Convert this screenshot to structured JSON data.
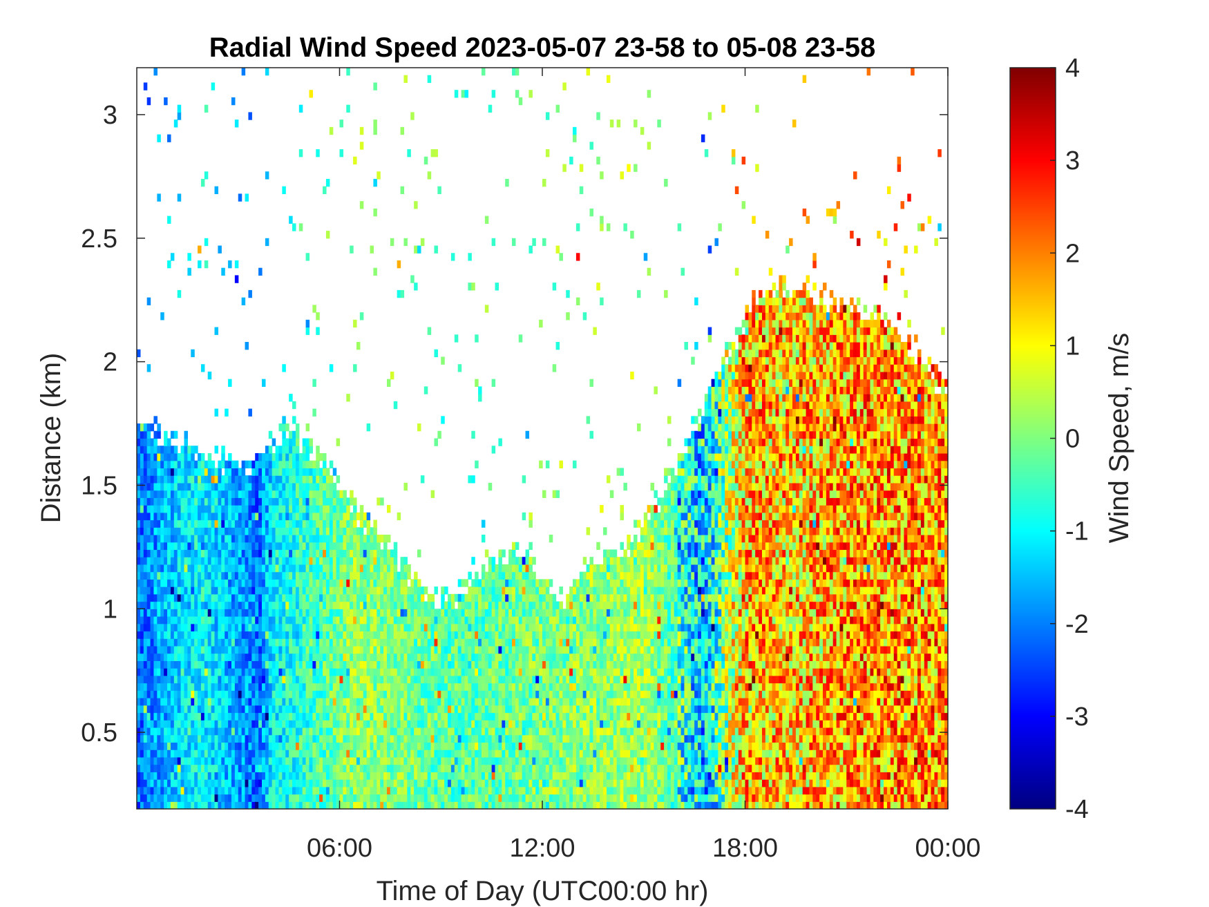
{
  "chart_data": {
    "type": "heatmap",
    "title": "Radial Wind Speed 2023-05-07 23-58 to 05-08 23-58",
    "xlabel": "Time of Day (UTC00:00 hr)",
    "ylabel": "Distance (km)",
    "xlim": [
      0,
      24
    ],
    "ylim": [
      0.19,
      3.19
    ],
    "x_ticks": [
      {
        "value": 6,
        "label": "06:00"
      },
      {
        "value": 12,
        "label": "12:00"
      },
      {
        "value": 18,
        "label": "18:00"
      },
      {
        "value": 24,
        "label": "00:00"
      }
    ],
    "y_ticks": [
      {
        "value": 0.5,
        "label": "0.5"
      },
      {
        "value": 1,
        "label": "1"
      },
      {
        "value": 1.5,
        "label": "1.5"
      },
      {
        "value": 2,
        "label": "2"
      },
      {
        "value": 2.5,
        "label": "2.5"
      },
      {
        "value": 3,
        "label": "3"
      }
    ],
    "colorbar": {
      "label": "Wind Speed, m/s",
      "range": [
        -4,
        4
      ],
      "colormap": "jet",
      "ticks": [
        {
          "value": -4,
          "label": "-4"
        },
        {
          "value": -3,
          "label": "-3"
        },
        {
          "value": -2,
          "label": "-2"
        },
        {
          "value": -1,
          "label": "-1"
        },
        {
          "value": 0,
          "label": "0"
        },
        {
          "value": 1,
          "label": "1"
        },
        {
          "value": 2,
          "label": "2"
        },
        {
          "value": 3,
          "label": "3"
        },
        {
          "value": 4,
          "label": "4"
        }
      ]
    },
    "data_extent": {
      "time_hr": [
        0,
        1.5,
        2.5,
        3.5,
        4.5,
        5.5,
        6.5,
        7.5,
        8.5,
        9.5,
        10.5,
        11.5,
        12.5,
        13.5,
        14.5,
        15.5,
        16.5,
        17.5,
        18.5,
        19.5,
        20.5,
        21.5,
        22.5,
        23.5,
        24
      ],
      "signal_top_km": [
        1.75,
        1.65,
        1.6,
        1.6,
        1.75,
        1.6,
        1.4,
        1.25,
        1.05,
        1.05,
        1.2,
        1.25,
        1.0,
        1.2,
        1.25,
        1.45,
        1.75,
        2.05,
        2.3,
        2.3,
        2.25,
        2.2,
        2.15,
        1.95,
        1.9
      ],
      "sparse_region_top_km": 3.19
    },
    "column_signal_mean_m_s": [
      {
        "time_hr": 0.2,
        "value": -3.8
      },
      {
        "time_hr": 1.2,
        "value": -2.3
      },
      {
        "time_hr": 2.0,
        "value": -1.8
      },
      {
        "time_hr": 3.6,
        "value": -3.9
      },
      {
        "time_hr": 4.0,
        "value": -2.0
      },
      {
        "time_hr": 6.5,
        "value": 0.3
      },
      {
        "time_hr": 9.5,
        "value": -0.6
      },
      {
        "time_hr": 12.5,
        "value": 0.0
      },
      {
        "time_hr": 15.2,
        "value": 0.5
      },
      {
        "time_hr": 16.8,
        "value": -2.5
      },
      {
        "time_hr": 18.0,
        "value": 2.8
      },
      {
        "time_hr": 19.5,
        "value": 2.5
      },
      {
        "time_hr": 21.0,
        "value": 3.2
      },
      {
        "time_hr": 22.0,
        "value": 3.3
      }
    ]
  }
}
